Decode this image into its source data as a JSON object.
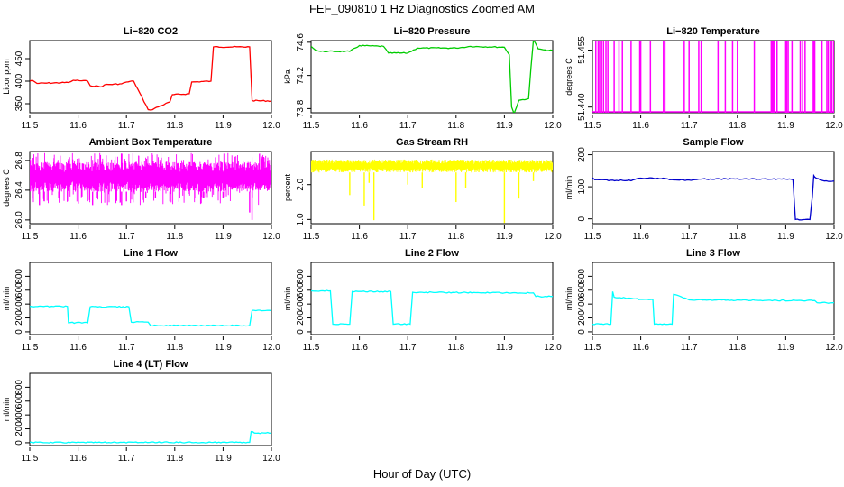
{
  "figure": {
    "title": "FEF_090810  1 Hz Diagnostics Zoomed AM",
    "xlabel": "Hour of Day (UTC)"
  },
  "chart_data": [
    {
      "type": "line",
      "title": "Li−820 CO2",
      "ylabel": "Licor ppm",
      "color": "#ff0000",
      "xlim": [
        11.5,
        12.0
      ],
      "ylim": [
        330,
        490
      ],
      "xticks": [
        "11.5",
        "11.6",
        "11.7",
        "11.8",
        "11.9",
        "12.0"
      ],
      "yticks": [
        "350",
        "400",
        "450"
      ],
      "ytick_values": [
        350,
        400,
        450
      ],
      "x": [
        11.5,
        11.505,
        11.515,
        11.58,
        11.585,
        11.59,
        11.62,
        11.625,
        11.65,
        11.655,
        11.69,
        11.7,
        11.715,
        11.745,
        11.75,
        11.79,
        11.795,
        11.83,
        11.835,
        11.875,
        11.88,
        11.955,
        11.96,
        12.0
      ],
      "y": [
        400,
        402,
        395,
        397,
        399,
        402,
        400,
        390,
        388,
        392,
        394,
        398,
        400,
        337,
        336,
        354,
        370,
        372,
        398,
        400,
        476,
        476,
        357,
        356
      ]
    },
    {
      "type": "line",
      "title": "Li−820 Pressure",
      "ylabel": "kPa",
      "color": "#00cc00",
      "xlim": [
        11.5,
        12.0
      ],
      "ylim": [
        73.75,
        74.62
      ],
      "xticks": [
        "11.5",
        "11.6",
        "11.7",
        "11.8",
        "11.9",
        "12.0"
      ],
      "yticks": [
        "73.8",
        "74.2",
        "74.6"
      ],
      "ytick_values": [
        73.8,
        74.2,
        74.6
      ],
      "x": [
        11.5,
        11.51,
        11.52,
        11.58,
        11.6,
        11.65,
        11.66,
        11.7,
        11.72,
        11.8,
        11.83,
        11.9,
        11.91,
        11.915,
        11.92,
        11.93,
        11.95,
        11.955,
        11.96,
        11.97,
        11.98,
        12.0
      ],
      "y": [
        74.55,
        74.5,
        74.49,
        74.49,
        74.56,
        74.55,
        74.47,
        74.47,
        74.53,
        74.53,
        74.55,
        74.54,
        74.45,
        73.82,
        73.74,
        73.9,
        73.92,
        74.3,
        74.63,
        74.52,
        74.51,
        74.5
      ]
    },
    {
      "type": "line",
      "title": "Li−820 Temperature",
      "ylabel": "degrees C",
      "color": "#ff00ff",
      "xlim": [
        11.5,
        12.0
      ],
      "ylim": [
        51.4385,
        51.4575
      ],
      "xticks": [
        "11.5",
        "11.6",
        "11.7",
        "11.8",
        "11.9",
        "12.0"
      ],
      "yticks": [
        "51.440",
        "51.455"
      ],
      "ytick_values": [
        51.44,
        51.455
      ],
      "baseline": 51.4385,
      "high": 51.4575,
      "spike_x": [
        11.507,
        11.512,
        11.515,
        11.519,
        11.523,
        11.528,
        11.532,
        11.545,
        11.555,
        11.562,
        11.58,
        11.598,
        11.6,
        11.62,
        11.647,
        11.65,
        11.69,
        11.7,
        11.72,
        11.725,
        11.76,
        11.775,
        11.79,
        11.8,
        11.835,
        11.87,
        11.872,
        11.874,
        11.876,
        11.882,
        11.9,
        11.902,
        11.905,
        11.913,
        11.93,
        11.935,
        11.94,
        11.955,
        11.958,
        11.96,
        11.975,
        11.985,
        11.988,
        11.992,
        11.995,
        11.999
      ]
    },
    {
      "type": "line",
      "title": "Ambient Box Temperature",
      "ylabel": "degrees C",
      "color": "#ff00ff",
      "xlim": [
        11.5,
        12.0
      ],
      "ylim": [
        25.95,
        26.92
      ],
      "xticks": [
        "11.5",
        "11.6",
        "11.7",
        "11.8",
        "11.9",
        "12.0"
      ],
      "yticks": [
        "26.0",
        "26.4",
        "26.8"
      ],
      "ytick_values": [
        26.0,
        26.4,
        26.8
      ],
      "band": [
        26.38,
        26.78
      ],
      "outer_band": [
        26.2,
        26.9
      ],
      "dips_x": [
        11.52,
        11.53,
        11.56,
        11.63,
        11.64,
        11.69,
        11.7,
        11.74,
        11.76,
        11.79,
        11.81,
        11.86,
        11.9,
        11.955,
        11.96
      ],
      "dips_y": [
        26.2,
        26.25,
        26.3,
        26.2,
        26.3,
        26.2,
        26.25,
        26.3,
        26.3,
        26.25,
        26.3,
        26.3,
        26.3,
        26.1,
        26.0
      ]
    },
    {
      "type": "line",
      "title": "Gas Stream RH",
      "ylabel": "percent",
      "color": "#ffff00",
      "xlim": [
        11.5,
        12.0
      ],
      "ylim": [
        0.88,
        2.95
      ],
      "xticks": [
        "11.5",
        "11.6",
        "11.7",
        "11.8",
        "11.9",
        "12.0"
      ],
      "yticks": [
        "1.0",
        "2.0"
      ],
      "ytick_values": [
        1.0,
        2.0
      ],
      "band": [
        2.35,
        2.72
      ],
      "dips_x": [
        11.58,
        11.61,
        11.62,
        11.63,
        11.7,
        11.73,
        11.8,
        11.82,
        11.9,
        11.93,
        11.96
      ],
      "dips_y": [
        1.7,
        1.4,
        2.05,
        0.98,
        2.0,
        1.9,
        1.5,
        1.9,
        0.9,
        1.6,
        2.1
      ]
    },
    {
      "type": "line",
      "title": "Sample Flow",
      "ylabel": "ml/min",
      "color": "#0000cc",
      "xlim": [
        11.5,
        12.0
      ],
      "ylim": [
        -15,
        210
      ],
      "xticks": [
        "11.5",
        "11.6",
        "11.7",
        "11.8",
        "11.9",
        "12.0"
      ],
      "yticks": [
        "0",
        "100",
        "200"
      ],
      "ytick_values": [
        0,
        100,
        200
      ],
      "x": [
        11.5,
        11.505,
        11.55,
        11.58,
        11.6,
        11.65,
        11.66,
        11.7,
        11.72,
        11.8,
        11.81,
        11.9,
        11.915,
        11.92,
        11.94,
        11.95,
        11.955,
        11.958,
        11.96,
        11.975,
        11.98,
        12.0
      ],
      "y": [
        128,
        122,
        120,
        119,
        127,
        126,
        122,
        121,
        124,
        125,
        124,
        124,
        122,
        -2,
        -2,
        -2,
        70,
        135,
        130,
        120,
        118,
        118
      ]
    },
    {
      "type": "line",
      "title": "Line 1 Flow",
      "ylabel": "ml/min",
      "color": "#00ffff",
      "xlim": [
        11.5,
        12.0
      ],
      "ylim": [
        -40,
        1000
      ],
      "xticks": [
        "11.5",
        "11.6",
        "11.7",
        "11.8",
        "11.9",
        "12.0"
      ],
      "yticks": [
        "0",
        "200",
        "400",
        "600",
        "800"
      ],
      "ytick_values": [
        0,
        200,
        400,
        600,
        800
      ],
      "x": [
        11.5,
        11.578,
        11.58,
        11.62,
        11.625,
        11.705,
        11.71,
        11.745,
        11.75,
        11.955,
        11.96,
        12.0
      ],
      "y": [
        365,
        365,
        130,
        130,
        360,
        360,
        140,
        140,
        90,
        90,
        310,
        305
      ]
    },
    {
      "type": "line",
      "title": "Line 2 Flow",
      "ylabel": "ml/min",
      "color": "#00ffff",
      "xlim": [
        11.5,
        12.0
      ],
      "ylim": [
        -40,
        1000
      ],
      "xticks": [
        "11.5",
        "11.6",
        "11.7",
        "11.8",
        "11.9",
        "12.0"
      ],
      "yticks": [
        "0",
        "200",
        "400",
        "600",
        "800"
      ],
      "ytick_values": [
        0,
        200,
        400,
        600,
        800
      ],
      "x": [
        11.5,
        11.54,
        11.545,
        11.58,
        11.585,
        11.665,
        11.67,
        11.705,
        11.71,
        11.96,
        11.965,
        12.0
      ],
      "y": [
        590,
        590,
        110,
        110,
        580,
        580,
        110,
        110,
        570,
        560,
        510,
        510
      ]
    },
    {
      "type": "line",
      "title": "Line 3 Flow",
      "ylabel": "ml/min",
      "color": "#00ffff",
      "xlim": [
        11.5,
        12.0
      ],
      "ylim": [
        -40,
        1000
      ],
      "xticks": [
        "11.5",
        "11.6",
        "11.7",
        "11.8",
        "11.9",
        "12.0"
      ],
      "yticks": [
        "0",
        "200",
        "400",
        "600",
        "800"
      ],
      "ytick_values": [
        0,
        200,
        400,
        600,
        800
      ],
      "x": [
        11.5,
        11.538,
        11.542,
        11.545,
        11.6,
        11.625,
        11.628,
        11.665,
        11.668,
        11.7,
        11.96,
        11.965,
        12.0
      ],
      "y": [
        110,
        110,
        580,
        500,
        470,
        470,
        110,
        110,
        540,
        460,
        450,
        420,
        420
      ]
    },
    {
      "type": "line",
      "title": "Line 4 (LT) Flow",
      "ylabel": "ml/min",
      "color": "#00ffff",
      "xlim": [
        11.5,
        12.0
      ],
      "ylim": [
        -40,
        1000
      ],
      "xticks": [
        "11.5",
        "11.6",
        "11.7",
        "11.8",
        "11.9",
        "12.0"
      ],
      "yticks": [
        "0",
        "200",
        "400",
        "600",
        "800"
      ],
      "ytick_values": [
        0,
        200,
        400,
        600,
        800
      ],
      "x": [
        11.5,
        11.955,
        11.958,
        11.965,
        12.0
      ],
      "y": [
        5,
        5,
        160,
        140,
        140
      ]
    }
  ]
}
